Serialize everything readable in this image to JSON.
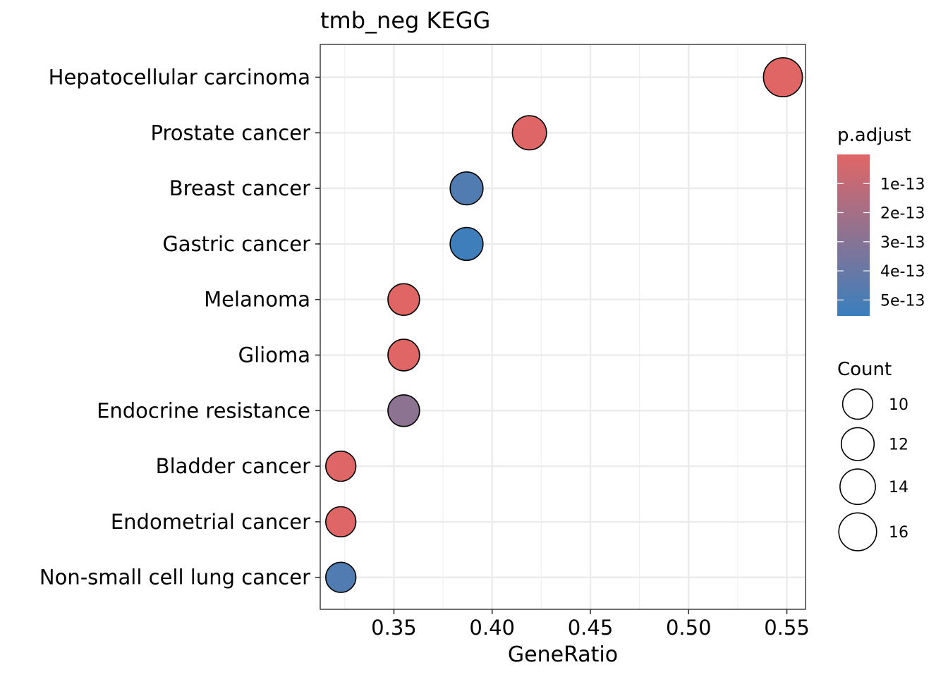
{
  "chart_data": {
    "type": "scatter",
    "title": "tmb_neg KEGG",
    "xlabel": "GeneRatio",
    "ylabel": "",
    "xlim": [
      0.3125,
      0.5595
    ],
    "x_ticks": [
      0.35,
      0.4,
      0.45,
      0.5,
      0.55
    ],
    "x_tick_labels": [
      "0.35",
      "0.40",
      "0.45",
      "0.50",
      "0.55"
    ],
    "categories": [
      "Hepatocellular carcinoma",
      "Prostate cancer",
      "Breast cancer",
      "Gastric cancer",
      "Melanoma",
      "Glioma",
      "Endocrine resistance",
      "Bladder cancer",
      "Endometrial cancer",
      "Non-small cell lung cancer"
    ],
    "points": [
      {
        "term": "Hepatocellular carcinoma",
        "gene_ratio": 0.548,
        "count": 17,
        "p_adjust": 1e-15
      },
      {
        "term": "Prostate cancer",
        "gene_ratio": 0.419,
        "count": 13,
        "p_adjust": 2e-15
      },
      {
        "term": "Breast cancer",
        "gene_ratio": 0.387,
        "count": 12,
        "p_adjust": 4.8e-13
      },
      {
        "term": "Gastric cancer",
        "gene_ratio": 0.387,
        "count": 12,
        "p_adjust": 5.4e-13
      },
      {
        "term": "Melanoma",
        "gene_ratio": 0.355,
        "count": 11,
        "p_adjust": 1e-15
      },
      {
        "term": "Glioma",
        "gene_ratio": 0.355,
        "count": 11,
        "p_adjust": 1e-15
      },
      {
        "term": "Endocrine resistance",
        "gene_ratio": 0.355,
        "count": 11,
        "p_adjust": 2.8e-13
      },
      {
        "term": "Bladder cancer",
        "gene_ratio": 0.323,
        "count": 10,
        "p_adjust": 2e-15
      },
      {
        "term": "Endometrial cancer",
        "gene_ratio": 0.323,
        "count": 10,
        "p_adjust": 2e-15
      },
      {
        "term": "Non-small cell lung cancer",
        "gene_ratio": 0.323,
        "count": 10,
        "p_adjust": 4.8e-13
      }
    ],
    "color_legend": {
      "title": "p.adjust",
      "low_color": "#e06666",
      "high_color": "#3a7fbd",
      "range": [
        0,
        5.55e-13
      ],
      "ticks": [
        1e-13,
        2e-13,
        3e-13,
        4e-13,
        5e-13
      ],
      "tick_labels": [
        "1e-13",
        "2e-13",
        "3e-13",
        "4e-13",
        "5e-13"
      ]
    },
    "size_legend": {
      "title": "Count",
      "values": [
        10,
        12,
        14,
        16
      ],
      "labels": [
        "10",
        "12",
        "14",
        "16"
      ]
    },
    "grid": true,
    "legend_position": "right"
  }
}
